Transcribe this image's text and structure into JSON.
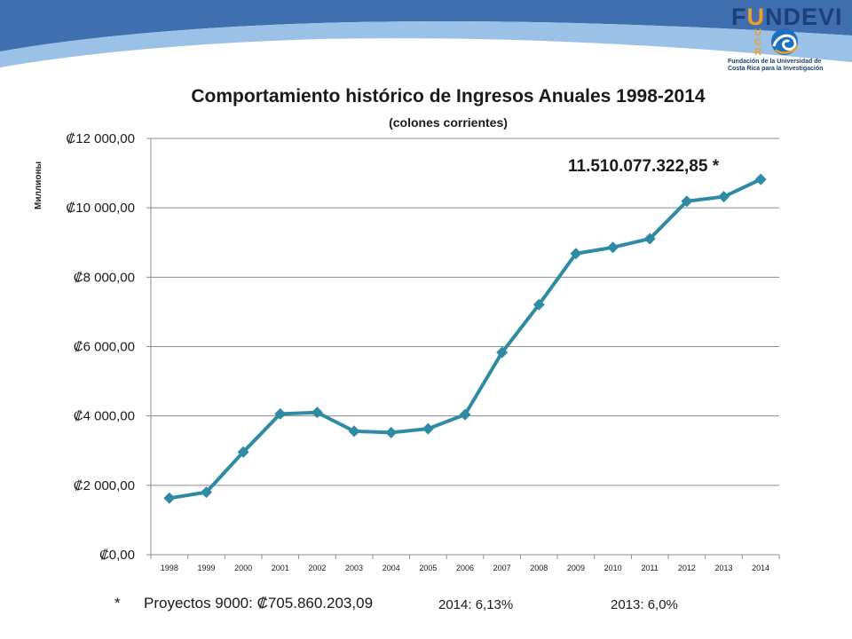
{
  "branding": {
    "logo_word_prefix": "F",
    "logo_word_accent": "U",
    "logo_word_suffix": "NDEVI",
    "logo_ucr": [
      "U",
      "C",
      "R"
    ],
    "logo_subtitle": [
      "Fundación de la Universidad de",
      "Costa Rica para la Investigación"
    ],
    "colors": {
      "banner_dark": "#3f6fb0",
      "banner_light": "#9cc1e6",
      "logo_blue": "#1e3f7a",
      "logo_orange": "#f0a020"
    }
  },
  "chart_data": {
    "type": "line",
    "title": "Comportamiento  histórico de Ingresos Anuales 1998-2014",
    "subtitle": "(colones corrientes)",
    "ylabel": "Миллионы",
    "xlabel": "",
    "categories": [
      "1998",
      "1999",
      "2000",
      "2001",
      "2002",
      "2003",
      "2004",
      "2005",
      "2006",
      "2007",
      "2008",
      "2009",
      "2010",
      "2011",
      "2012",
      "2013",
      "2014"
    ],
    "series": [
      {
        "values": [
          1630,
          1800,
          2960,
          4060,
          4100,
          3560,
          3520,
          3630,
          4040,
          5830,
          7210,
          8680,
          8860,
          9110,
          10190,
          10320,
          10820
        ],
        "color": "#2f8aa3",
        "marker": "diamond"
      }
    ],
    "ylim": [
      0,
      12000
    ],
    "yticks": [
      0,
      2000,
      4000,
      6000,
      8000,
      10000,
      12000
    ],
    "ytick_labels": [
      "₡0,00",
      "₡2 000,00",
      "₡4 000,00",
      "₡6 000,00",
      "₡8 000,00",
      "₡10 000,00",
      "₡12 000,00"
    ],
    "grid": true,
    "annotation": "11.510.077.322,85  *"
  },
  "footer": {
    "star": "*",
    "proyectos": "Proyectos 9000: ₡705.860.203,09",
    "growth_2014": "2014: 6,13%",
    "growth_2013": "2013: 6,0%"
  }
}
